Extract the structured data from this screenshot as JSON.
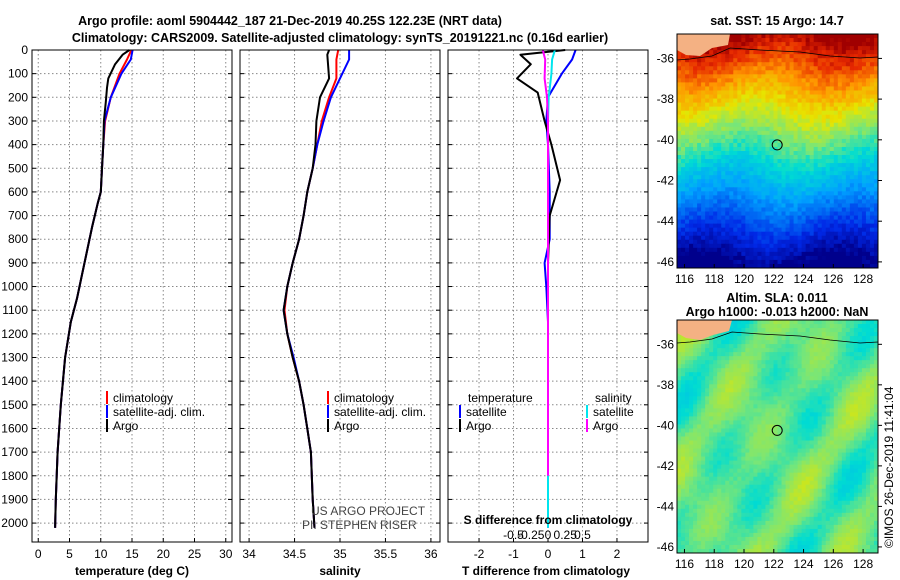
{
  "header": {
    "title_line1": "Argo profile: aoml 5904442_187 21-Dec-2019 40.25S 122.23E (NRT data)",
    "title_line2": "Climatology: CARS2009. Satellite-adjusted climatology: synTS_20191221.nc (0.16d earlier)"
  },
  "colors": {
    "climatology": "#ff0000",
    "satellite": "#0000ff",
    "argo": "#000000",
    "sat_salinity": "#00e5ee",
    "argo_salinity": "#ff00ff"
  },
  "chart_data": [
    {
      "type": "line",
      "name": "temperature",
      "xlabel": "temperature (deg C)",
      "xlim": [
        -1,
        31
      ],
      "ylim": [
        2080,
        0
      ],
      "xticks": [
        0,
        5,
        10,
        15,
        20,
        25,
        30
      ],
      "xtick_labels": [
        "0",
        "5",
        "10",
        "15",
        "20",
        "25",
        "30"
      ],
      "yticks": [
        0,
        100,
        200,
        300,
        400,
        500,
        600,
        700,
        800,
        900,
        1000,
        1100,
        1200,
        1300,
        1400,
        1500,
        1600,
        1700,
        1800,
        1900,
        2000
      ],
      "legend": [
        "climatology",
        "satellite-adj. clim.",
        "Argo"
      ],
      "series": [
        {
          "name": "climatology",
          "color": "#ff0000",
          "points": [
            [
              14.9,
              0
            ],
            [
              14.2,
              40
            ],
            [
              13.0,
              100
            ],
            [
              11.6,
              200
            ],
            [
              10.7,
              300
            ],
            [
              10.4,
              400
            ],
            [
              10.2,
              500
            ],
            [
              10.0,
              600
            ],
            [
              9.5,
              650
            ],
            [
              8.6,
              750
            ],
            [
              7.8,
              850
            ],
            [
              7.0,
              950
            ],
            [
              6.2,
              1050
            ],
            [
              5.2,
              1150
            ],
            [
              4.3,
              1300
            ],
            [
              3.6,
              1500
            ],
            [
              3.1,
              1700
            ],
            [
              2.8,
              1900
            ],
            [
              2.7,
              2020
            ]
          ]
        },
        {
          "name": "satellite-adj. clim.",
          "color": "#0000ff",
          "points": [
            [
              15.1,
              0
            ],
            [
              14.8,
              40
            ],
            [
              13.3,
              100
            ],
            [
              11.6,
              200
            ],
            [
              10.6,
              300
            ],
            [
              10.4,
              400
            ],
            [
              10.2,
              500
            ],
            [
              10.0,
              600
            ],
            [
              9.5,
              650
            ],
            [
              8.6,
              750
            ],
            [
              7.8,
              850
            ],
            [
              7.0,
              950
            ],
            [
              6.2,
              1050
            ],
            [
              5.2,
              1150
            ],
            [
              4.3,
              1300
            ],
            [
              3.6,
              1500
            ],
            [
              3.1,
              1700
            ],
            [
              2.8,
              1900
            ],
            [
              2.7,
              2020
            ]
          ]
        },
        {
          "name": "Argo",
          "color": "#000000",
          "points": [
            [
              14.6,
              0
            ],
            [
              13.5,
              20
            ],
            [
              12.3,
              60
            ],
            [
              11.2,
              120
            ],
            [
              11.0,
              160
            ],
            [
              10.8,
              220
            ],
            [
              10.5,
              300
            ],
            [
              10.4,
              400
            ],
            [
              10.2,
              500
            ],
            [
              10.0,
              600
            ],
            [
              9.5,
              650
            ],
            [
              8.6,
              750
            ],
            [
              7.8,
              850
            ],
            [
              7.0,
              950
            ],
            [
              6.2,
              1050
            ],
            [
              5.2,
              1150
            ],
            [
              4.3,
              1300
            ],
            [
              3.6,
              1500
            ],
            [
              3.1,
              1700
            ],
            [
              2.8,
              1900
            ],
            [
              2.7,
              2020
            ]
          ]
        }
      ]
    },
    {
      "type": "line",
      "name": "salinity",
      "xlabel": "salinity",
      "xlim": [
        33.9,
        36.1
      ],
      "ylim": [
        2080,
        0
      ],
      "xticks": [
        34,
        34.5,
        35,
        35.5,
        36
      ],
      "xtick_labels": [
        "34",
        "34.5",
        "35",
        "35.5",
        "36"
      ],
      "legend": [
        "climatology",
        "satellite-adj. clim.",
        "Argo"
      ],
      "credit_line1": "US ARGO PROJECT",
      "credit_line2": "PI: STEPHEN RISER",
      "series": [
        {
          "name": "climatology",
          "color": "#ff0000",
          "points": [
            [
              34.98,
              0
            ],
            [
              34.96,
              40
            ],
            [
              34.96,
              120
            ],
            [
              34.88,
              200
            ],
            [
              34.8,
              300
            ],
            [
              34.75,
              400
            ],
            [
              34.7,
              500
            ],
            [
              34.64,
              600
            ],
            [
              34.6,
              700
            ],
            [
              34.55,
              800
            ],
            [
              34.48,
              900
            ],
            [
              34.42,
              1000
            ],
            [
              34.39,
              1100
            ],
            [
              34.42,
              1200
            ],
            [
              34.48,
              1300
            ],
            [
              34.55,
              1400
            ],
            [
              34.6,
              1500
            ],
            [
              34.64,
              1600
            ],
            [
              34.68,
              1700
            ],
            [
              34.7,
              1900
            ],
            [
              34.72,
              2020
            ]
          ]
        },
        {
          "name": "satellite-adj. clim.",
          "color": "#0000ff",
          "points": [
            [
              35.1,
              0
            ],
            [
              35.1,
              40
            ],
            [
              35.0,
              120
            ],
            [
              34.9,
              200
            ],
            [
              34.82,
              300
            ],
            [
              34.75,
              400
            ],
            [
              34.7,
              500
            ],
            [
              34.64,
              600
            ],
            [
              34.6,
              700
            ],
            [
              34.55,
              800
            ],
            [
              34.48,
              900
            ],
            [
              34.42,
              1000
            ],
            [
              34.38,
              1100
            ],
            [
              34.42,
              1200
            ],
            [
              34.49,
              1300
            ],
            [
              34.55,
              1400
            ],
            [
              34.6,
              1500
            ],
            [
              34.64,
              1600
            ],
            [
              34.68,
              1700
            ],
            [
              34.7,
              1900
            ],
            [
              34.72,
              2020
            ]
          ]
        },
        {
          "name": "Argo",
          "color": "#000000",
          "points": [
            [
              34.88,
              0
            ],
            [
              34.86,
              20
            ],
            [
              34.88,
              120
            ],
            [
              34.78,
              200
            ],
            [
              34.74,
              300
            ],
            [
              34.73,
              400
            ],
            [
              34.7,
              500
            ],
            [
              34.64,
              600
            ],
            [
              34.6,
              700
            ],
            [
              34.55,
              800
            ],
            [
              34.48,
              900
            ],
            [
              34.42,
              1000
            ],
            [
              34.38,
              1100
            ],
            [
              34.42,
              1200
            ],
            [
              34.48,
              1300
            ],
            [
              34.55,
              1400
            ],
            [
              34.6,
              1500
            ],
            [
              34.64,
              1600
            ],
            [
              34.68,
              1700
            ],
            [
              34.7,
              1900
            ],
            [
              34.72,
              2020
            ]
          ]
        }
      ]
    },
    {
      "type": "line",
      "name": "difference",
      "xlabel": "T difference from climatology",
      "xlabel_top": "S difference from climatology",
      "xlim": [
        -2.9,
        2.9
      ],
      "ylim": [
        2080,
        0
      ],
      "xticks": [
        -2,
        -1,
        0,
        1,
        2
      ],
      "xtick_labels": [
        "-2",
        "-1",
        "0",
        "1",
        "2"
      ],
      "s_xtick_labels": [
        "-0.5",
        "-0.25",
        "0",
        "0.25",
        "0.5"
      ],
      "legend_temperature_title": "temperature",
      "legend_salinity_title": "salinity",
      "legend_items": [
        "satellite",
        "Argo"
      ],
      "series": [
        {
          "name": "temperature satellite",
          "color": "#0000ff",
          "points": [
            [
              0.8,
              0
            ],
            [
              0.7,
              40
            ],
            [
              0.4,
              100
            ],
            [
              0.0,
              200
            ],
            [
              -0.05,
              300
            ],
            [
              0.0,
              400
            ],
            [
              0.05,
              600
            ],
            [
              0.05,
              800
            ],
            [
              -0.1,
              900
            ],
            [
              -0.05,
              1000
            ],
            [
              0.0,
              1150
            ],
            [
              0.0,
              1300
            ],
            [
              0.0,
              1600
            ],
            [
              0.0,
              1800
            ],
            [
              0.0,
              2020
            ]
          ]
        },
        {
          "name": "temperature Argo",
          "color": "#000000",
          "points": [
            [
              0.5,
              0
            ],
            [
              -0.8,
              20
            ],
            [
              -0.5,
              60
            ],
            [
              -0.9,
              120
            ],
            [
              -0.3,
              180
            ],
            [
              -0.1,
              300
            ],
            [
              0.1,
              400
            ],
            [
              0.35,
              550
            ],
            [
              0.05,
              700
            ],
            [
              0.0,
              900
            ],
            [
              0.0,
              1100
            ],
            [
              0.0,
              1200
            ]
          ]
        },
        {
          "name": "salinity satellite",
          "color": "#00e5ee",
          "points": [
            [
              0.2,
              0
            ],
            [
              0.12,
              40
            ],
            [
              0.1,
              100
            ],
            [
              0.02,
              200
            ],
            [
              0.0,
              300
            ],
            [
              0.0,
              600
            ],
            [
              0.0,
              1000
            ],
            [
              0.0,
              1500
            ],
            [
              0.0,
              2020
            ]
          ]
        },
        {
          "name": "salinity Argo",
          "color": "#ff00ff",
          "points": [
            [
              -0.15,
              0
            ],
            [
              -0.08,
              40
            ],
            [
              -0.1,
              120
            ],
            [
              -0.03,
              200
            ],
            [
              0.0,
              300
            ],
            [
              0.0,
              600
            ],
            [
              0.0,
              1000
            ],
            [
              0.0,
              1500
            ],
            [
              0.0,
              1800
            ]
          ]
        }
      ]
    },
    {
      "type": "heatmap",
      "name": "sst_map",
      "title": "sat. SST: 15 Argo: 14.7",
      "xlim": [
        115.5,
        129
      ],
      "ylim": [
        -46.3,
        -34.8
      ],
      "xticks": [
        116,
        118,
        120,
        122,
        124,
        126,
        128
      ],
      "xtick_labels": [
        "116",
        "118",
        "120",
        "122",
        "124",
        "126",
        "128"
      ],
      "yticks": [
        -36,
        -38,
        -40,
        -42,
        -44,
        -46
      ],
      "ytick_labels": [
        "-36",
        "-38",
        "-40",
        "-42",
        "-44",
        "-46"
      ],
      "float_location": [
        122.23,
        -40.25
      ]
    },
    {
      "type": "heatmap",
      "name": "sla_map",
      "title_line1": "Altim. SLA: 0.011",
      "title_line2": "Argo h1000: -0.013 h2000: NaN",
      "xlim": [
        115.5,
        129
      ],
      "ylim": [
        -46.3,
        -34.8
      ],
      "xticks": [
        116,
        118,
        120,
        122,
        124,
        126,
        128
      ],
      "xtick_labels": [
        "116",
        "118",
        "120",
        "122",
        "124",
        "126",
        "128"
      ],
      "yticks": [
        -36,
        -38,
        -40,
        -42,
        -44,
        -46
      ],
      "ytick_labels": [
        "-36",
        "-38",
        "-40",
        "-42",
        "-44",
        "-46"
      ],
      "float_location": [
        122.23,
        -40.25
      ]
    }
  ],
  "watermark": "©IMOS 26-Dec-2019 11:41:04"
}
